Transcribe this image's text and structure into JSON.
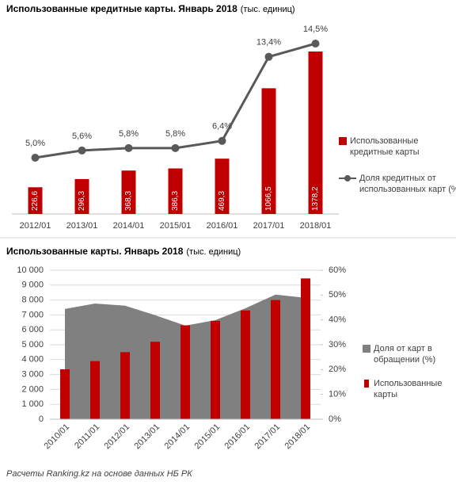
{
  "chart_data": [
    {
      "type": "bar",
      "title": "Использованные кредитные карты. Январь 2018",
      "subtitle": "(тыс. единиц)",
      "categories": [
        "2012/01",
        "2013/01",
        "2014/01",
        "2015/01",
        "2016/01",
        "2017/01",
        "2018/01"
      ],
      "series": [
        {
          "name": "Использованные кредитные карты",
          "type": "bar",
          "color": "#c00000",
          "values": [
            226.6,
            296.3,
            368.3,
            386.3,
            469.3,
            1066.5,
            1378.2
          ],
          "value_labels": [
            "226,6",
            "296,3",
            "368,3",
            "386,3",
            "469,3",
            "1066,5",
            "1378,2"
          ]
        },
        {
          "name": "Доля кредитных от использованных карт (%)",
          "type": "line",
          "color": "#595959",
          "values": [
            5.0,
            5.6,
            5.8,
            5.8,
            6.4,
            13.4,
            14.5
          ],
          "value_labels": [
            "5,0%",
            "5,6%",
            "5,8%",
            "5,8%",
            "6,4%",
            "13,4%",
            "14,5%"
          ]
        }
      ],
      "legend": "right"
    },
    {
      "type": "bar",
      "title": "Использованные карты. Январь 2018",
      "subtitle": "(тыс. единиц)",
      "categories": [
        "2010/01",
        "2011/01",
        "2012/01",
        "2013/01",
        "2014/01",
        "2015/01",
        "2016/01",
        "2017/01",
        "2018/01"
      ],
      "series": [
        {
          "name": "Доля от карт в обращении (%)",
          "type": "area",
          "axis": "y2",
          "color": "#808080",
          "values": [
            44.4,
            46.6,
            45.7,
            41.9,
            37.7,
            39.9,
            44.7,
            50.2,
            48.9
          ]
        },
        {
          "name": "Использованные карты",
          "type": "bar",
          "color": "#c00000",
          "values": [
            3350,
            3900,
            4500,
            5200,
            6300,
            6600,
            7300,
            8000,
            9450
          ]
        }
      ],
      "ylim": [
        0,
        10000
      ],
      "yticks": [
        0,
        {
          "value": 1000,
          "label": "1 000"
        },
        {
          "value": 2000,
          "label": "2 000"
        },
        {
          "value": 3000,
          "label": "3 000"
        },
        {
          "value": 4000,
          "label": "4 000"
        },
        {
          "value": 5000,
          "label": "5 000"
        },
        {
          "value": 6000,
          "label": "6 000"
        },
        {
          "value": 7000,
          "label": "7 000"
        },
        {
          "value": 8000,
          "label": "8 000"
        },
        {
          "value": 9000,
          "label": "9 000"
        },
        {
          "value": 10000,
          "label": "10 000"
        }
      ],
      "y2lim": [
        0,
        60
      ],
      "y2ticks": [
        {
          "value": 0,
          "label": "0%"
        },
        {
          "value": 10,
          "label": "10%"
        },
        {
          "value": 20,
          "label": "20%"
        },
        {
          "value": 30,
          "label": "30%"
        },
        {
          "value": 40,
          "label": "40%"
        },
        {
          "value": 50,
          "label": "50%"
        },
        {
          "value": 60,
          "label": "60%"
        }
      ],
      "legend": "right"
    }
  ],
  "source": "Расчеты Ranking.kz на основе данных НБ РК"
}
